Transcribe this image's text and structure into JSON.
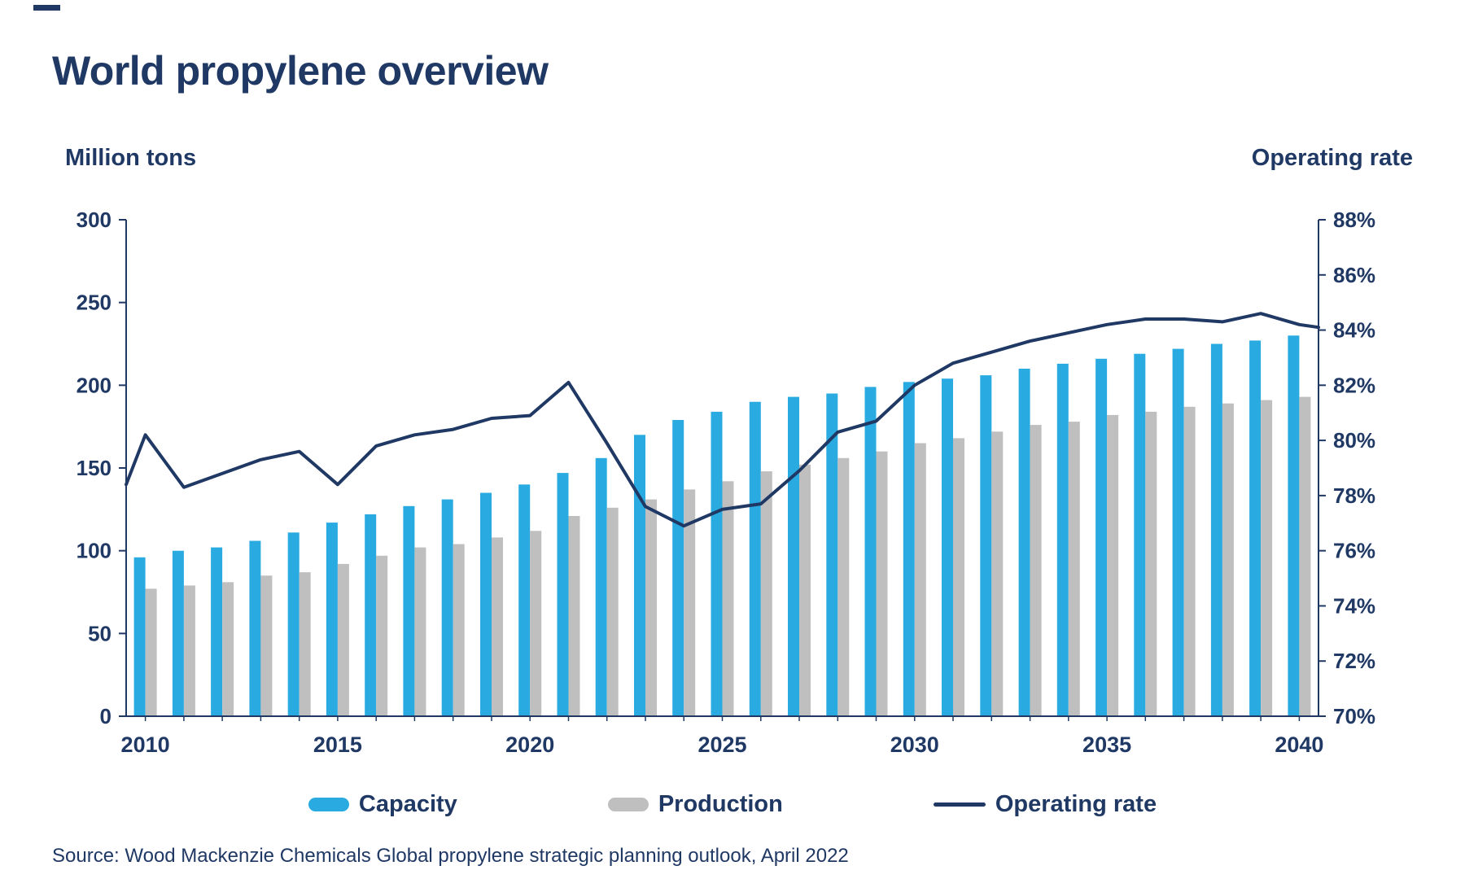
{
  "title": "World propylene overview",
  "source": "Source: Wood Mackenzie Chemicals Global propylene strategic planning outlook, April 2022",
  "colors": {
    "navy": "#1f3864",
    "capacity_blue": "#29abe2",
    "production_gray": "#bfbfbf",
    "background": "#ffffff"
  },
  "chart_data": {
    "type": "bar",
    "subtype": "combo-bar-line-dual-axis",
    "title": "World propylene overview",
    "left_axis_title": "Million tons",
    "right_axis_title": "Operating rate",
    "grid": false,
    "legend_position": "bottom",
    "x": [
      2010,
      2011,
      2012,
      2013,
      2014,
      2015,
      2016,
      2017,
      2018,
      2019,
      2020,
      2021,
      2022,
      2023,
      2024,
      2025,
      2026,
      2027,
      2028,
      2029,
      2030,
      2031,
      2032,
      2033,
      2034,
      2035,
      2036,
      2037,
      2038,
      2039,
      2040
    ],
    "xticks": [
      2010,
      2015,
      2020,
      2025,
      2030,
      2035,
      2040
    ],
    "ylim_left": [
      0,
      300
    ],
    "yticks_left": [
      0,
      50,
      100,
      150,
      200,
      250,
      300
    ],
    "ylim_right": [
      70,
      88
    ],
    "yticks_right": [
      {
        "value": 70,
        "label": "70%"
      },
      {
        "value": 72,
        "label": "72%"
      },
      {
        "value": 74,
        "label": "74%"
      },
      {
        "value": 76,
        "label": "76%"
      },
      {
        "value": 78,
        "label": "78%"
      },
      {
        "value": 80,
        "label": "80%"
      },
      {
        "value": 82,
        "label": "82%"
      },
      {
        "value": 84,
        "label": "84%"
      },
      {
        "value": 86,
        "label": "86%"
      },
      {
        "value": 88,
        "label": "88%"
      }
    ],
    "series": [
      {
        "name": "Capacity",
        "type": "bar",
        "axis": "left",
        "color": "#29abe2",
        "values": [
          96,
          100,
          102,
          106,
          111,
          117,
          122,
          127,
          131,
          135,
          140,
          147,
          156,
          170,
          179,
          184,
          190,
          193,
          195,
          199,
          202,
          204,
          206,
          210,
          213,
          216,
          219,
          222,
          225,
          227,
          230
        ]
      },
      {
        "name": "Production",
        "type": "bar",
        "axis": "left",
        "color": "#bfbfbf",
        "values": [
          77,
          79,
          81,
          85,
          87,
          92,
          97,
          102,
          104,
          108,
          112,
          121,
          126,
          131,
          137,
          142,
          148,
          152,
          156,
          160,
          165,
          168,
          172,
          176,
          178,
          182,
          184,
          187,
          189,
          191,
          193
        ]
      },
      {
        "name": "Operating rate",
        "type": "line",
        "axis": "right",
        "color": "#1f3864",
        "edge_start": 78.4,
        "edge_end": 84.1,
        "values": [
          80.2,
          78.3,
          78.8,
          79.3,
          79.6,
          78.4,
          79.8,
          80.2,
          80.4,
          80.8,
          80.9,
          82.1,
          79.9,
          77.6,
          76.9,
          77.5,
          77.7,
          78.9,
          80.3,
          80.7,
          82.0,
          82.8,
          83.2,
          83.6,
          83.9,
          84.2,
          84.4,
          84.4,
          84.3,
          84.6,
          84.2
        ]
      }
    ]
  }
}
